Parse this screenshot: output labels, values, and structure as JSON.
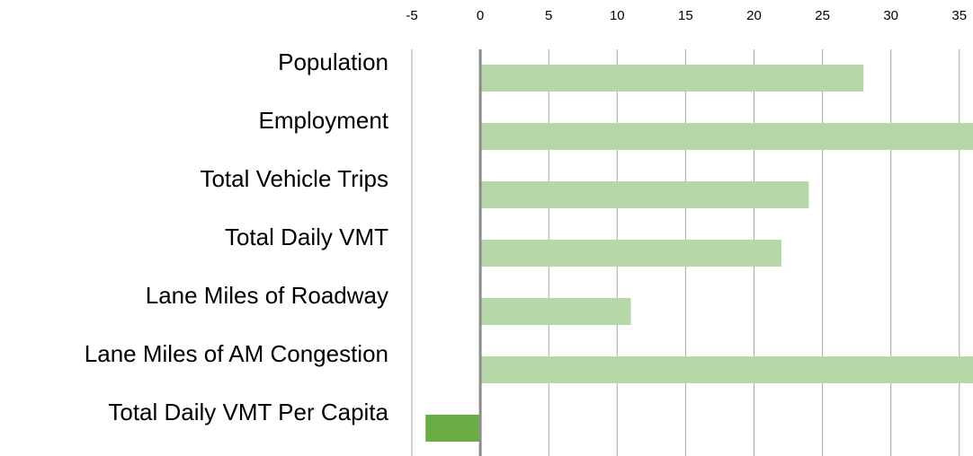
{
  "chart_data": {
    "type": "barh",
    "categories": [
      "Population",
      "Employment",
      "Total Vehicle Trips",
      "Total Daily VMT",
      "Lane Miles of Roadway",
      "Lane Miles of AM Congestion",
      "Total Daily VMT Per Capita"
    ],
    "values": [
      28,
      36,
      24,
      22,
      11,
      36,
      -4
    ],
    "colors": [
      "#b6d7a8",
      "#b6d7a8",
      "#b6d7a8",
      "#b6d7a8",
      "#b6d7a8",
      "#b6d7a8",
      "#6aad45"
    ],
    "xlim": [
      -5,
      36
    ],
    "xticks": [
      -5,
      0,
      5,
      10,
      15,
      20,
      25,
      30,
      35
    ],
    "grid": true
  }
}
